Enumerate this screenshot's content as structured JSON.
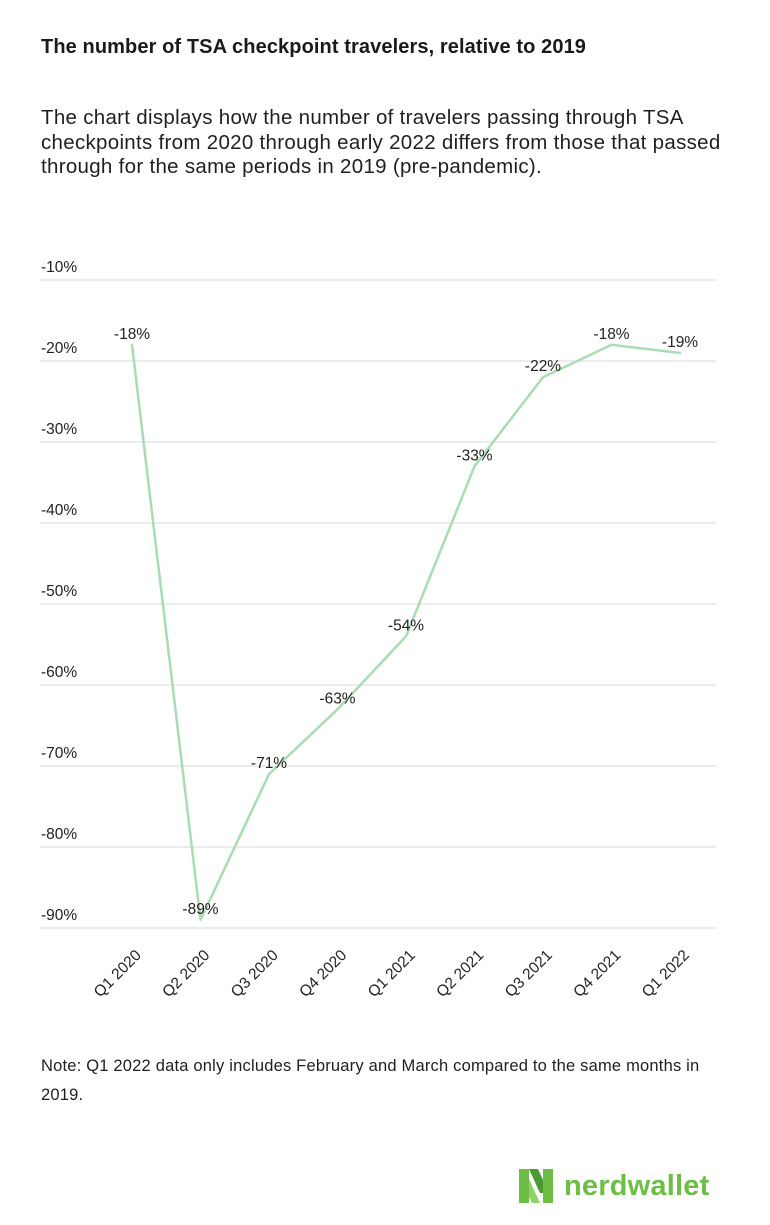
{
  "title": "The number of TSA checkpoint travelers, relative to 2019",
  "subtitle": "The chart displays how the number of travelers passing through TSA checkpoints from 2020 through early 2022 differs from those that passed through for the same periods in 2019 (pre-pandemic).",
  "note": "Note: Q1 2022 data only includes February and March compared to the same months in 2019.",
  "brand": {
    "name": "nerdwallet",
    "color": "#6cbe45"
  },
  "chart_data": {
    "type": "line",
    "categories": [
      "Q1 2020",
      "Q2 2020",
      "Q3 2020",
      "Q4 2020",
      "Q1 2021",
      "Q2 2021",
      "Q3 2021",
      "Q4 2021",
      "Q1 2022"
    ],
    "series": [
      {
        "values": [
          -18,
          -89,
          -71,
          -63,
          -54,
          -33,
          -22,
          -18,
          -19
        ]
      }
    ],
    "data_labels": [
      "-18%",
      "-89%",
      "-71%",
      "-63%",
      "-54%",
      "-33%",
      "-22%",
      "-18%",
      "-19%"
    ],
    "yticks": [
      -10,
      -20,
      -30,
      -40,
      -50,
      -60,
      -70,
      -80,
      -90
    ],
    "ytick_labels": [
      "-10%",
      "-20%",
      "-30%",
      "-40%",
      "-50%",
      "-60%",
      "-70%",
      "-80%",
      "-90%"
    ],
    "ylim": [
      -90,
      -10
    ],
    "xlabel": "",
    "ylabel": "",
    "grid": true,
    "line_color": "#a8dcb4",
    "grid_color": "#d9d9d9"
  }
}
